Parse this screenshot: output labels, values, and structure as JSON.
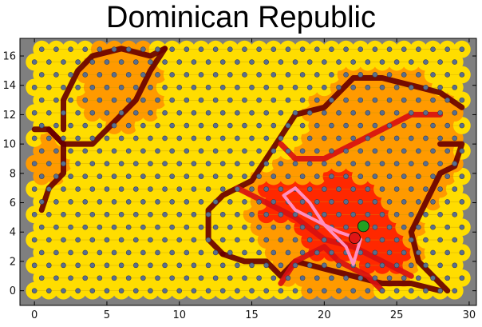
{
  "title": "Dominican Republic",
  "chart_data": {
    "type": "scatter",
    "title": "Dominican Republic",
    "xlabel": "",
    "ylabel": "",
    "xlim": [
      -1,
      30.5
    ],
    "ylim": [
      -1,
      17.2
    ],
    "xticks": [
      "0",
      "5",
      "10",
      "15",
      "20",
      "25",
      "30"
    ],
    "yticks": [
      "0",
      "2",
      "4",
      "6",
      "8",
      "10",
      "12",
      "14",
      "16"
    ],
    "grid": false,
    "legend": "none",
    "lattice": {
      "kind": "hexagonal",
      "x_range": [
        0,
        29.5
      ],
      "y_range": [
        0,
        16.5
      ]
    },
    "colors": {
      "background": "#7f7f7f",
      "cell_default": "#ffdd00",
      "cell_orange": "#ff9a00",
      "cell_red": "#ff2800",
      "path_dark": "#6a0000",
      "path_red": "#d81010",
      "trajectory": "#ff8fc0",
      "marker_start": "#22a022",
      "marker_end": "#e01515",
      "node": "#5a6e8e"
    },
    "heat_zones": [
      {
        "center": [
          21,
          5
        ],
        "radius": 5.5,
        "level": "red"
      },
      {
        "center": [
          17,
          6
        ],
        "radius": 2.5,
        "level": "red"
      },
      {
        "center": [
          24,
          3
        ],
        "radius": 3,
        "level": "red"
      },
      {
        "center": [
          24,
          10
        ],
        "radius": 5.5,
        "level": "orange"
      },
      {
        "center": [
          6,
          14
        ],
        "radius": 3,
        "level": "orange"
      },
      {
        "center": [
          1,
          9
        ],
        "radius": 1.5,
        "level": "orange"
      }
    ],
    "paths": [
      {
        "style": "dark",
        "points": [
          [
            2,
            11
          ],
          [
            2,
            13
          ],
          [
            3,
            15
          ],
          [
            4,
            16
          ],
          [
            6,
            16.5
          ],
          [
            8,
            16
          ],
          [
            9,
            16.5
          ]
        ]
      },
      {
        "style": "dark",
        "points": [
          [
            1,
            11
          ],
          [
            2,
            10
          ],
          [
            3,
            10
          ],
          [
            4,
            10
          ],
          [
            5,
            11
          ],
          [
            6,
            12
          ],
          [
            7,
            13
          ],
          [
            8,
            15
          ],
          [
            9,
            16.5
          ]
        ]
      },
      {
        "style": "dark",
        "points": [
          [
            0.5,
            5.5
          ],
          [
            1,
            7
          ],
          [
            2,
            8
          ],
          [
            2,
            10
          ],
          [
            1,
            11
          ],
          [
            0,
            11
          ]
        ]
      },
      {
        "style": "dark",
        "points": [
          [
            13,
            2.5
          ],
          [
            12,
            3.5
          ],
          [
            12,
            5.5
          ],
          [
            13,
            6.5
          ],
          [
            15,
            7.5
          ],
          [
            16,
            9
          ],
          [
            17,
            10.5
          ],
          [
            18,
            12
          ],
          [
            20,
            12.5
          ],
          [
            21,
            13.5
          ],
          [
            22,
            14.5
          ],
          [
            24,
            14.5
          ],
          [
            26,
            14
          ],
          [
            28,
            13.5
          ],
          [
            29.5,
            12.5
          ]
        ]
      },
      {
        "style": "dark",
        "points": [
          [
            28,
            10
          ],
          [
            29.5,
            10
          ],
          [
            29,
            8.5
          ],
          [
            28,
            8
          ],
          [
            27,
            6
          ],
          [
            26,
            4
          ],
          [
            26.5,
            2
          ],
          [
            28,
            0.5
          ],
          [
            28.5,
            0
          ]
        ]
      },
      {
        "style": "dark",
        "points": [
          [
            13,
            2.5
          ],
          [
            14.5,
            2
          ],
          [
            16,
            2
          ],
          [
            17,
            1
          ],
          [
            18,
            2
          ],
          [
            20,
            1.5
          ],
          [
            22,
            1
          ],
          [
            24,
            0.5
          ],
          [
            26,
            0.5
          ],
          [
            28,
            0
          ]
        ]
      },
      {
        "style": "red",
        "points": [
          [
            17,
            10
          ],
          [
            18,
            9
          ],
          [
            20,
            9
          ],
          [
            22,
            10
          ],
          [
            24,
            11
          ],
          [
            26,
            12
          ],
          [
            28,
            12
          ]
        ]
      },
      {
        "style": "red",
        "points": [
          [
            14,
            7
          ],
          [
            16,
            6
          ],
          [
            18,
            5
          ],
          [
            20,
            3.5
          ],
          [
            22,
            3
          ],
          [
            24,
            2
          ],
          [
            26,
            1
          ]
        ]
      },
      {
        "style": "red",
        "points": [
          [
            17,
            0.5
          ],
          [
            18,
            2
          ],
          [
            20,
            3
          ],
          [
            21,
            2
          ],
          [
            23,
            1
          ],
          [
            24,
            0
          ]
        ]
      }
    ],
    "trajectory": [
      [
        18,
        7
      ],
      [
        17.2,
        6.5
      ],
      [
        18,
        5.5
      ],
      [
        20,
        4.5
      ],
      [
        21.5,
        3
      ],
      [
        22,
        1.8
      ],
      [
        22.5,
        3.5
      ],
      [
        21,
        4
      ],
      [
        20,
        4.5
      ],
      [
        19,
        6
      ],
      [
        18,
        7
      ]
    ],
    "markers": [
      {
        "kind": "start",
        "x": 22.7,
        "y": 4.4
      },
      {
        "kind": "end",
        "x": 22.1,
        "y": 3.6
      }
    ]
  }
}
